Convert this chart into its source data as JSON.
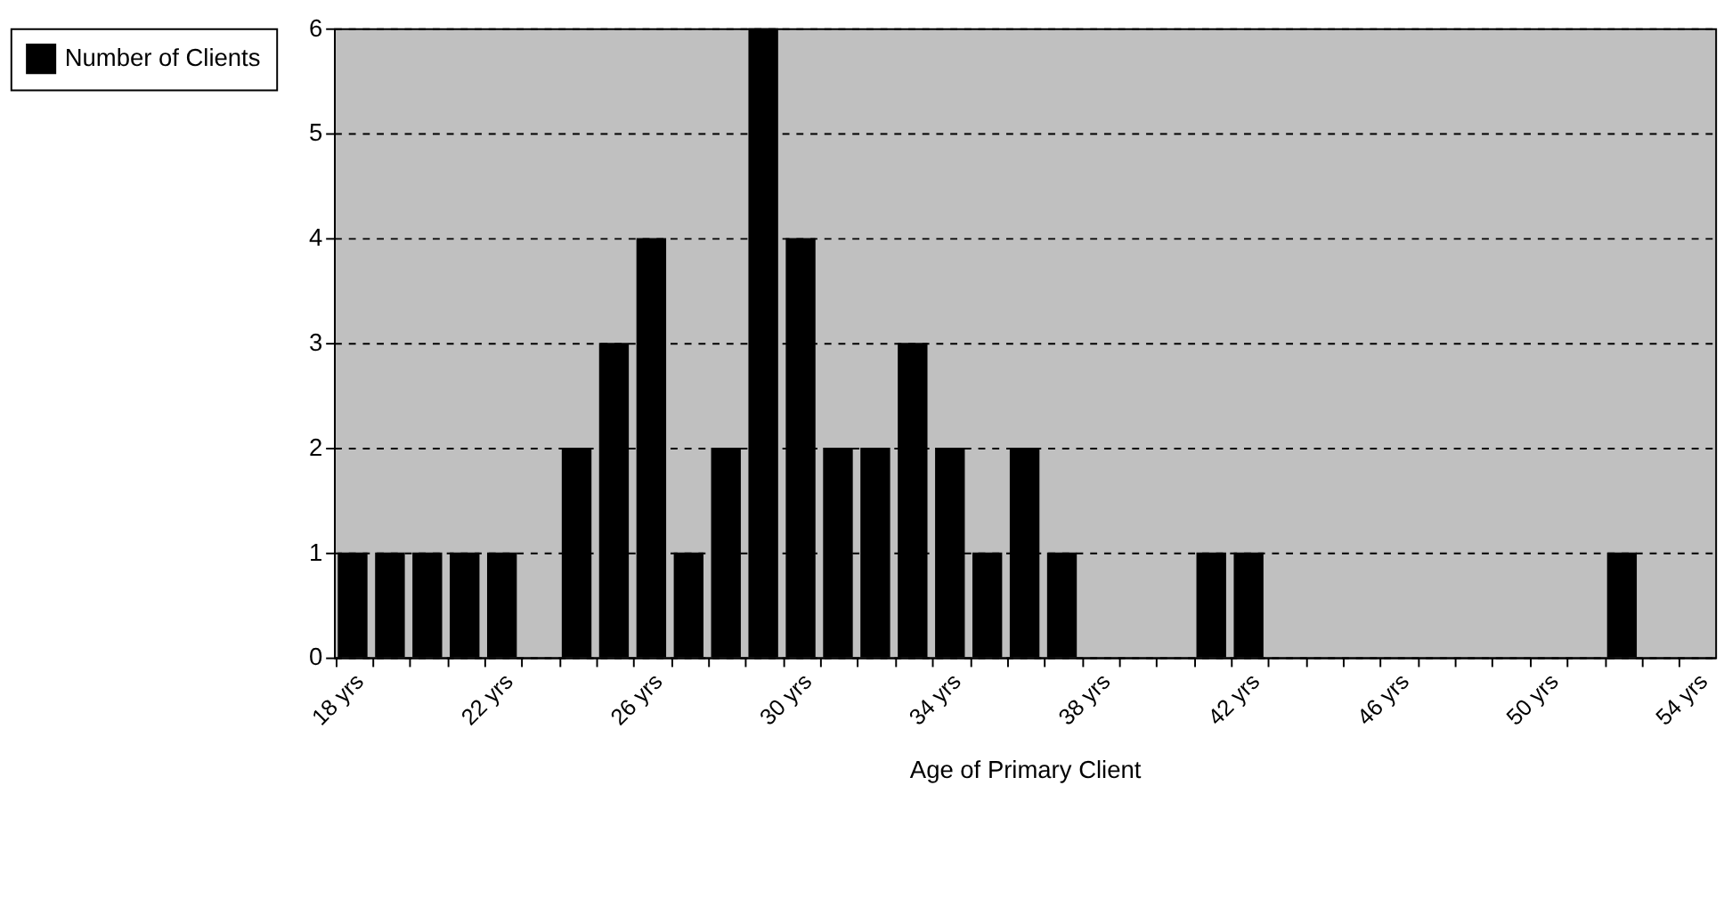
{
  "chart_data": {
    "type": "bar",
    "xlabel": "Age of Primary Client",
    "categories": [
      "18 yrs",
      null,
      null,
      null,
      "22 yrs",
      null,
      null,
      null,
      "26 yrs",
      null,
      null,
      null,
      "30 yrs",
      null,
      null,
      null,
      "34 yrs",
      null,
      null,
      null,
      "38 yrs",
      null,
      null,
      null,
      "42 yrs",
      null,
      null,
      null,
      "46 yrs",
      null,
      null,
      null,
      "50 yrs",
      null,
      null,
      null,
      "54 yrs"
    ],
    "series": [
      {
        "name": "Number of Clients",
        "color": "#000000",
        "values": [
          1,
          1,
          1,
          1,
          1,
          0,
          2,
          3,
          4,
          1,
          2,
          6,
          4,
          2,
          2,
          3,
          2,
          1,
          2,
          1,
          0,
          0,
          0,
          1,
          1,
          0,
          0,
          0,
          0,
          0,
          0,
          0,
          0,
          0,
          1,
          0,
          0
        ]
      }
    ],
    "ylim": [
      0,
      6
    ],
    "yticks": [
      0,
      1,
      2,
      3,
      4,
      5,
      6
    ],
    "grid": "y",
    "legend": "left"
  }
}
